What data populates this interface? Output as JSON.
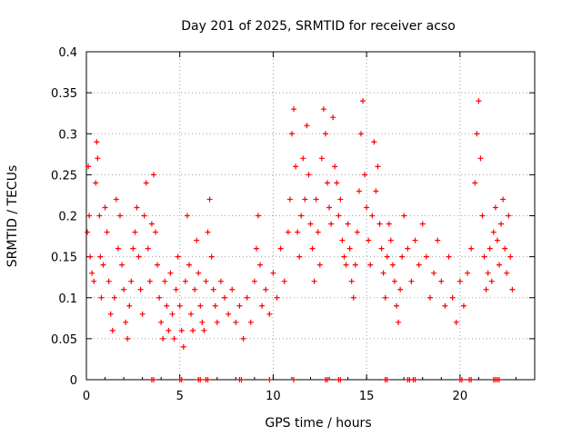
{
  "chart_data": {
    "type": "scatter",
    "title": "Day 201 of 2025, SRMTID for receiver acso",
    "xlabel": "GPS time / hours",
    "ylabel": "SRMTID / TECUs",
    "xlim": [
      0,
      24
    ],
    "ylim": [
      0,
      0.4
    ],
    "xticks": [
      0,
      5,
      10,
      15,
      20
    ],
    "xtick_labels": [
      "0",
      "5",
      "10",
      "15",
      "20"
    ],
    "yticks": [
      0,
      0.05,
      0.1,
      0.15,
      0.2,
      0.25,
      0.3,
      0.35,
      0.4
    ],
    "ytick_labels": [
      "0",
      "0.05",
      "0.1",
      "0.15",
      "0.2",
      "0.25",
      "0.3",
      "0.35",
      "0.4"
    ],
    "grid": true,
    "marker": "+",
    "color": "#ff0000",
    "series": [
      {
        "name": "SRMTID",
        "points": [
          [
            0.05,
            0.18
          ],
          [
            0.1,
            0.26
          ],
          [
            0.15,
            0.2
          ],
          [
            0.2,
            0.15
          ],
          [
            0.3,
            0.13
          ],
          [
            0.4,
            0.12
          ],
          [
            0.5,
            0.24
          ],
          [
            0.55,
            0.29
          ],
          [
            0.6,
            0.27
          ],
          [
            0.7,
            0.2
          ],
          [
            0.75,
            0.15
          ],
          [
            0.8,
            0.1
          ],
          [
            0.9,
            0.14
          ],
          [
            1.0,
            0.21
          ],
          [
            1.1,
            0.18
          ],
          [
            1.2,
            0.12
          ],
          [
            1.3,
            0.08
          ],
          [
            1.4,
            0.06
          ],
          [
            1.5,
            0.1
          ],
          [
            1.6,
            0.22
          ],
          [
            1.7,
            0.16
          ],
          [
            1.8,
            0.2
          ],
          [
            1.9,
            0.14
          ],
          [
            2.0,
            0.11
          ],
          [
            2.1,
            0.07
          ],
          [
            2.2,
            0.05
          ],
          [
            2.3,
            0.09
          ],
          [
            2.4,
            0.12
          ],
          [
            2.5,
            0.16
          ],
          [
            2.6,
            0.18
          ],
          [
            2.7,
            0.21
          ],
          [
            2.8,
            0.15
          ],
          [
            2.9,
            0.11
          ],
          [
            3.0,
            0.08
          ],
          [
            3.1,
            0.2
          ],
          [
            3.2,
            0.24
          ],
          [
            3.3,
            0.16
          ],
          [
            3.4,
            0.12
          ],
          [
            3.5,
            0.19
          ],
          [
            3.6,
            0.25
          ],
          [
            3.7,
            0.18
          ],
          [
            3.8,
            0.14
          ],
          [
            3.9,
            0.1
          ],
          [
            4.0,
            0.07
          ],
          [
            4.1,
            0.05
          ],
          [
            4.2,
            0.12
          ],
          [
            4.3,
            0.09
          ],
          [
            4.4,
            0.06
          ],
          [
            4.5,
            0.13
          ],
          [
            4.6,
            0.08
          ],
          [
            4.7,
            0.05
          ],
          [
            4.8,
            0.11
          ],
          [
            4.9,
            0.15
          ],
          [
            5.0,
            0.09
          ],
          [
            5.1,
            0.06
          ],
          [
            5.2,
            0.04
          ],
          [
            5.3,
            0.12
          ],
          [
            5.4,
            0.2
          ],
          [
            5.5,
            0.14
          ],
          [
            5.6,
            0.08
          ],
          [
            5.7,
            0.06
          ],
          [
            5.8,
            0.11
          ],
          [
            5.9,
            0.17
          ],
          [
            6.0,
            0.13
          ],
          [
            6.1,
            0.09
          ],
          [
            6.2,
            0.07
          ],
          [
            6.3,
            0.06
          ],
          [
            6.4,
            0.12
          ],
          [
            6.5,
            0.18
          ],
          [
            6.6,
            0.22
          ],
          [
            6.7,
            0.15
          ],
          [
            6.8,
            0.11
          ],
          [
            6.9,
            0.09
          ],
          [
            7.0,
            0.07
          ],
          [
            7.2,
            0.12
          ],
          [
            7.4,
            0.1
          ],
          [
            7.6,
            0.08
          ],
          [
            7.8,
            0.11
          ],
          [
            8.0,
            0.07
          ],
          [
            8.2,
            0.09
          ],
          [
            8.4,
            0.05
          ],
          [
            8.6,
            0.1
          ],
          [
            8.8,
            0.07
          ],
          [
            9.0,
            0.12
          ],
          [
            9.1,
            0.16
          ],
          [
            9.2,
            0.2
          ],
          [
            9.3,
            0.14
          ],
          [
            9.4,
            0.09
          ],
          [
            9.6,
            0.11
          ],
          [
            9.8,
            0.08
          ],
          [
            10.0,
            0.13
          ],
          [
            10.2,
            0.1
          ],
          [
            10.4,
            0.16
          ],
          [
            10.6,
            0.12
          ],
          [
            10.8,
            0.18
          ],
          [
            10.9,
            0.22
          ],
          [
            11.0,
            0.3
          ],
          [
            11.1,
            0.33
          ],
          [
            11.2,
            0.26
          ],
          [
            11.3,
            0.18
          ],
          [
            11.4,
            0.15
          ],
          [
            11.5,
            0.2
          ],
          [
            11.6,
            0.27
          ],
          [
            11.7,
            0.22
          ],
          [
            11.8,
            0.31
          ],
          [
            11.9,
            0.25
          ],
          [
            12.0,
            0.19
          ],
          [
            12.1,
            0.16
          ],
          [
            12.2,
            0.12
          ],
          [
            12.3,
            0.22
          ],
          [
            12.4,
            0.18
          ],
          [
            12.5,
            0.14
          ],
          [
            12.6,
            0.27
          ],
          [
            12.7,
            0.33
          ],
          [
            12.8,
            0.3
          ],
          [
            12.9,
            0.24
          ],
          [
            13.0,
            0.21
          ],
          [
            13.1,
            0.19
          ],
          [
            13.2,
            0.32
          ],
          [
            13.3,
            0.26
          ],
          [
            13.4,
            0.24
          ],
          [
            13.5,
            0.2
          ],
          [
            13.6,
            0.22
          ],
          [
            13.7,
            0.17
          ],
          [
            13.8,
            0.15
          ],
          [
            13.9,
            0.14
          ],
          [
            14.0,
            0.19
          ],
          [
            14.1,
            0.16
          ],
          [
            14.2,
            0.12
          ],
          [
            14.3,
            0.1
          ],
          [
            14.4,
            0.14
          ],
          [
            14.5,
            0.18
          ],
          [
            14.6,
            0.23
          ],
          [
            14.7,
            0.3
          ],
          [
            14.8,
            0.34
          ],
          [
            14.9,
            0.25
          ],
          [
            15.0,
            0.21
          ],
          [
            15.1,
            0.17
          ],
          [
            15.2,
            0.14
          ],
          [
            15.3,
            0.2
          ],
          [
            15.4,
            0.29
          ],
          [
            15.5,
            0.23
          ],
          [
            15.6,
            0.26
          ],
          [
            15.7,
            0.19
          ],
          [
            15.8,
            0.16
          ],
          [
            15.9,
            0.13
          ],
          [
            16.0,
            0.1
          ],
          [
            16.1,
            0.15
          ],
          [
            16.2,
            0.19
          ],
          [
            16.3,
            0.17
          ],
          [
            16.4,
            0.14
          ],
          [
            16.5,
            0.12
          ],
          [
            16.6,
            0.09
          ],
          [
            16.7,
            0.07
          ],
          [
            16.8,
            0.11
          ],
          [
            16.9,
            0.15
          ],
          [
            17.0,
            0.2
          ],
          [
            17.2,
            0.16
          ],
          [
            17.4,
            0.12
          ],
          [
            17.6,
            0.17
          ],
          [
            17.8,
            0.14
          ],
          [
            18.0,
            0.19
          ],
          [
            18.2,
            0.15
          ],
          [
            18.4,
            0.1
          ],
          [
            18.6,
            0.13
          ],
          [
            18.8,
            0.17
          ],
          [
            19.0,
            0.12
          ],
          [
            19.2,
            0.09
          ],
          [
            19.4,
            0.15
          ],
          [
            19.6,
            0.1
          ],
          [
            19.8,
            0.07
          ],
          [
            20.0,
            0.12
          ],
          [
            20.2,
            0.09
          ],
          [
            20.4,
            0.13
          ],
          [
            20.6,
            0.16
          ],
          [
            20.8,
            0.24
          ],
          [
            20.9,
            0.3
          ],
          [
            21.0,
            0.34
          ],
          [
            21.1,
            0.27
          ],
          [
            21.2,
            0.2
          ],
          [
            21.3,
            0.15
          ],
          [
            21.4,
            0.11
          ],
          [
            21.5,
            0.13
          ],
          [
            21.6,
            0.16
          ],
          [
            21.7,
            0.12
          ],
          [
            21.8,
            0.18
          ],
          [
            21.9,
            0.21
          ],
          [
            22.0,
            0.17
          ],
          [
            22.1,
            0.14
          ],
          [
            22.2,
            0.19
          ],
          [
            22.3,
            0.22
          ],
          [
            22.4,
            0.16
          ],
          [
            22.5,
            0.13
          ],
          [
            22.6,
            0.2
          ],
          [
            22.7,
            0.15
          ],
          [
            22.8,
            0.11
          ]
        ]
      },
      {
        "name": "zero-level marks",
        "points": [
          [
            3.5,
            0
          ],
          [
            3.6,
            0
          ],
          [
            5.0,
            0
          ],
          [
            5.1,
            0
          ],
          [
            6.0,
            0
          ],
          [
            6.1,
            0
          ],
          [
            6.4,
            0
          ],
          [
            6.5,
            0
          ],
          [
            8.2,
            0
          ],
          [
            8.3,
            0
          ],
          [
            9.8,
            0
          ],
          [
            11.1,
            0
          ],
          [
            12.8,
            0
          ],
          [
            12.9,
            0
          ],
          [
            13.5,
            0
          ],
          [
            13.6,
            0
          ],
          [
            16.0,
            0
          ],
          [
            16.1,
            0
          ],
          [
            17.2,
            0
          ],
          [
            17.3,
            0
          ],
          [
            17.5,
            0
          ],
          [
            17.6,
            0
          ],
          [
            20.0,
            0
          ],
          [
            20.1,
            0
          ],
          [
            20.5,
            0
          ],
          [
            20.6,
            0
          ],
          [
            21.8,
            0
          ],
          [
            21.9,
            0
          ],
          [
            22.0,
            0
          ],
          [
            22.1,
            0
          ]
        ]
      }
    ]
  }
}
